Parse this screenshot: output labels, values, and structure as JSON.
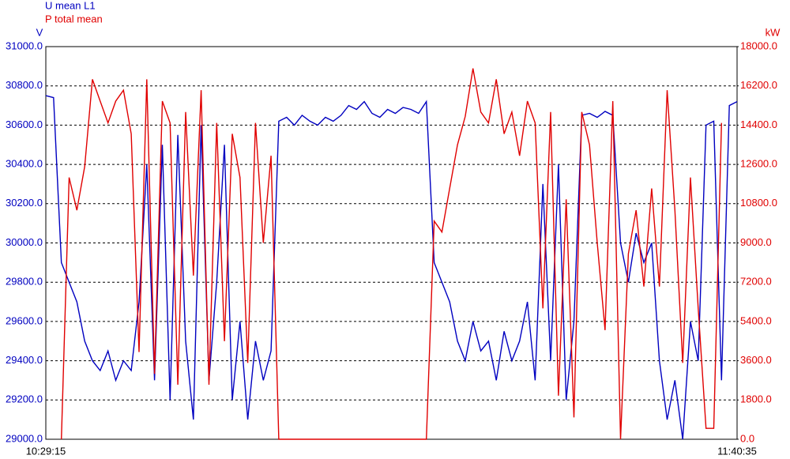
{
  "chart_data": {
    "type": "line",
    "y_label": "V",
    "y2_label": "kW",
    "grid": true,
    "legend": "top-left",
    "categories": [
      "10:29:15",
      null,
      null,
      null,
      null,
      null,
      null,
      null,
      null,
      null,
      null,
      null,
      null,
      null,
      null,
      null,
      null,
      null,
      null,
      null,
      null,
      null,
      null,
      null,
      null,
      null,
      null,
      null,
      null,
      null,
      null,
      null,
      null,
      null,
      null,
      null,
      null,
      null,
      null,
      null,
      null,
      null,
      null,
      null,
      null,
      null,
      null,
      null,
      null,
      null,
      null,
      null,
      null,
      null,
      null,
      null,
      null,
      null,
      null,
      null,
      null,
      null,
      null,
      null,
      null,
      null,
      null,
      null,
      null,
      null,
      null,
      null,
      null,
      null,
      null,
      null,
      null,
      null,
      null,
      null,
      null,
      null,
      null,
      null,
      null,
      null,
      null,
      null,
      null,
      "11:40:35"
    ],
    "ylim": [
      29000,
      31000
    ],
    "yticks": [
      {
        "value": 29000,
        "label": "29000.0"
      },
      {
        "value": 29200,
        "label": "29200.0"
      },
      {
        "value": 29400,
        "label": "29400.0"
      },
      {
        "value": 29600,
        "label": "29600.0"
      },
      {
        "value": 29800,
        "label": "29800.0"
      },
      {
        "value": 30000,
        "label": "30000.0"
      },
      {
        "value": 30200,
        "label": "30200.0"
      },
      {
        "value": 30400,
        "label": "30400.0"
      },
      {
        "value": 30600,
        "label": "30600.0"
      },
      {
        "value": 30800,
        "label": "30800.0"
      },
      {
        "value": 31000,
        "label": "31000.0"
      }
    ],
    "y2lim": [
      0,
      18000
    ],
    "y2ticks": [
      {
        "value": 0,
        "label": "0.0"
      },
      {
        "value": 1800,
        "label": "1800.0"
      },
      {
        "value": 3600,
        "label": "3600.0"
      },
      {
        "value": 5400,
        "label": "5400.0"
      },
      {
        "value": 7200,
        "label": "7200.0"
      },
      {
        "value": 9000,
        "label": "9000.0"
      },
      {
        "value": 10800,
        "label": "10800.0"
      },
      {
        "value": 12600,
        "label": "12600.0"
      },
      {
        "value": 14400,
        "label": "14400.0"
      },
      {
        "value": 16200,
        "label": "16200.0"
      },
      {
        "value": 18000,
        "label": "18000.0"
      }
    ],
    "series": [
      {
        "name": "U mean L1",
        "color": "#0000c0",
        "axis": "y",
        "values": [
          30750,
          30740,
          29900,
          29800,
          29700,
          29500,
          29400,
          29350,
          29450,
          29300,
          29400,
          29350,
          29700,
          30400,
          29300,
          30500,
          29200,
          30550,
          29500,
          29100,
          30600,
          29300,
          29800,
          30500,
          29200,
          29600,
          29100,
          29500,
          29300,
          29450,
          30620,
          30640,
          30600,
          30650,
          30620,
          30600,
          30640,
          30620,
          30650,
          30700,
          30680,
          30720,
          30660,
          30640,
          30680,
          30660,
          30690,
          30680,
          30660,
          30720,
          29900,
          29800,
          29700,
          29500,
          29400,
          29600,
          29450,
          29500,
          29300,
          29550,
          29400,
          29500,
          29700,
          29300,
          30300,
          29400,
          30400,
          29200,
          29600,
          30650,
          30660,
          30640,
          30670,
          30650,
          30000,
          29800,
          30050,
          29900,
          30000,
          29400,
          29100,
          29300,
          29000,
          29600,
          29400,
          30600,
          30620,
          29300,
          30700,
          30720
        ]
      },
      {
        "name": "P total mean",
        "color": "#e00000",
        "axis": "y2",
        "values": [
          null,
          null,
          0,
          12000,
          10500,
          12500,
          16500,
          15500,
          14500,
          15500,
          16000,
          14000,
          4000,
          16500,
          3000,
          15500,
          14500,
          2500,
          15000,
          7500,
          16000,
          2500,
          14500,
          4500,
          14000,
          12000,
          3500,
          14500,
          9000,
          13000,
          0,
          0,
          0,
          0,
          0,
          0,
          0,
          0,
          0,
          0,
          0,
          0,
          0,
          0,
          0,
          0,
          0,
          0,
          0,
          0,
          10000,
          9500,
          11500,
          13500,
          14800,
          17000,
          15000,
          14500,
          16500,
          14000,
          15000,
          13000,
          15500,
          14500,
          6000,
          15000,
          2000,
          11000,
          1000,
          15000,
          13500,
          9000,
          5000,
          15500,
          0,
          8500,
          10500,
          7000,
          11500,
          7000,
          16000,
          10500,
          3500,
          12000,
          6000,
          500,
          500,
          14500,
          null,
          null
        ]
      }
    ]
  }
}
